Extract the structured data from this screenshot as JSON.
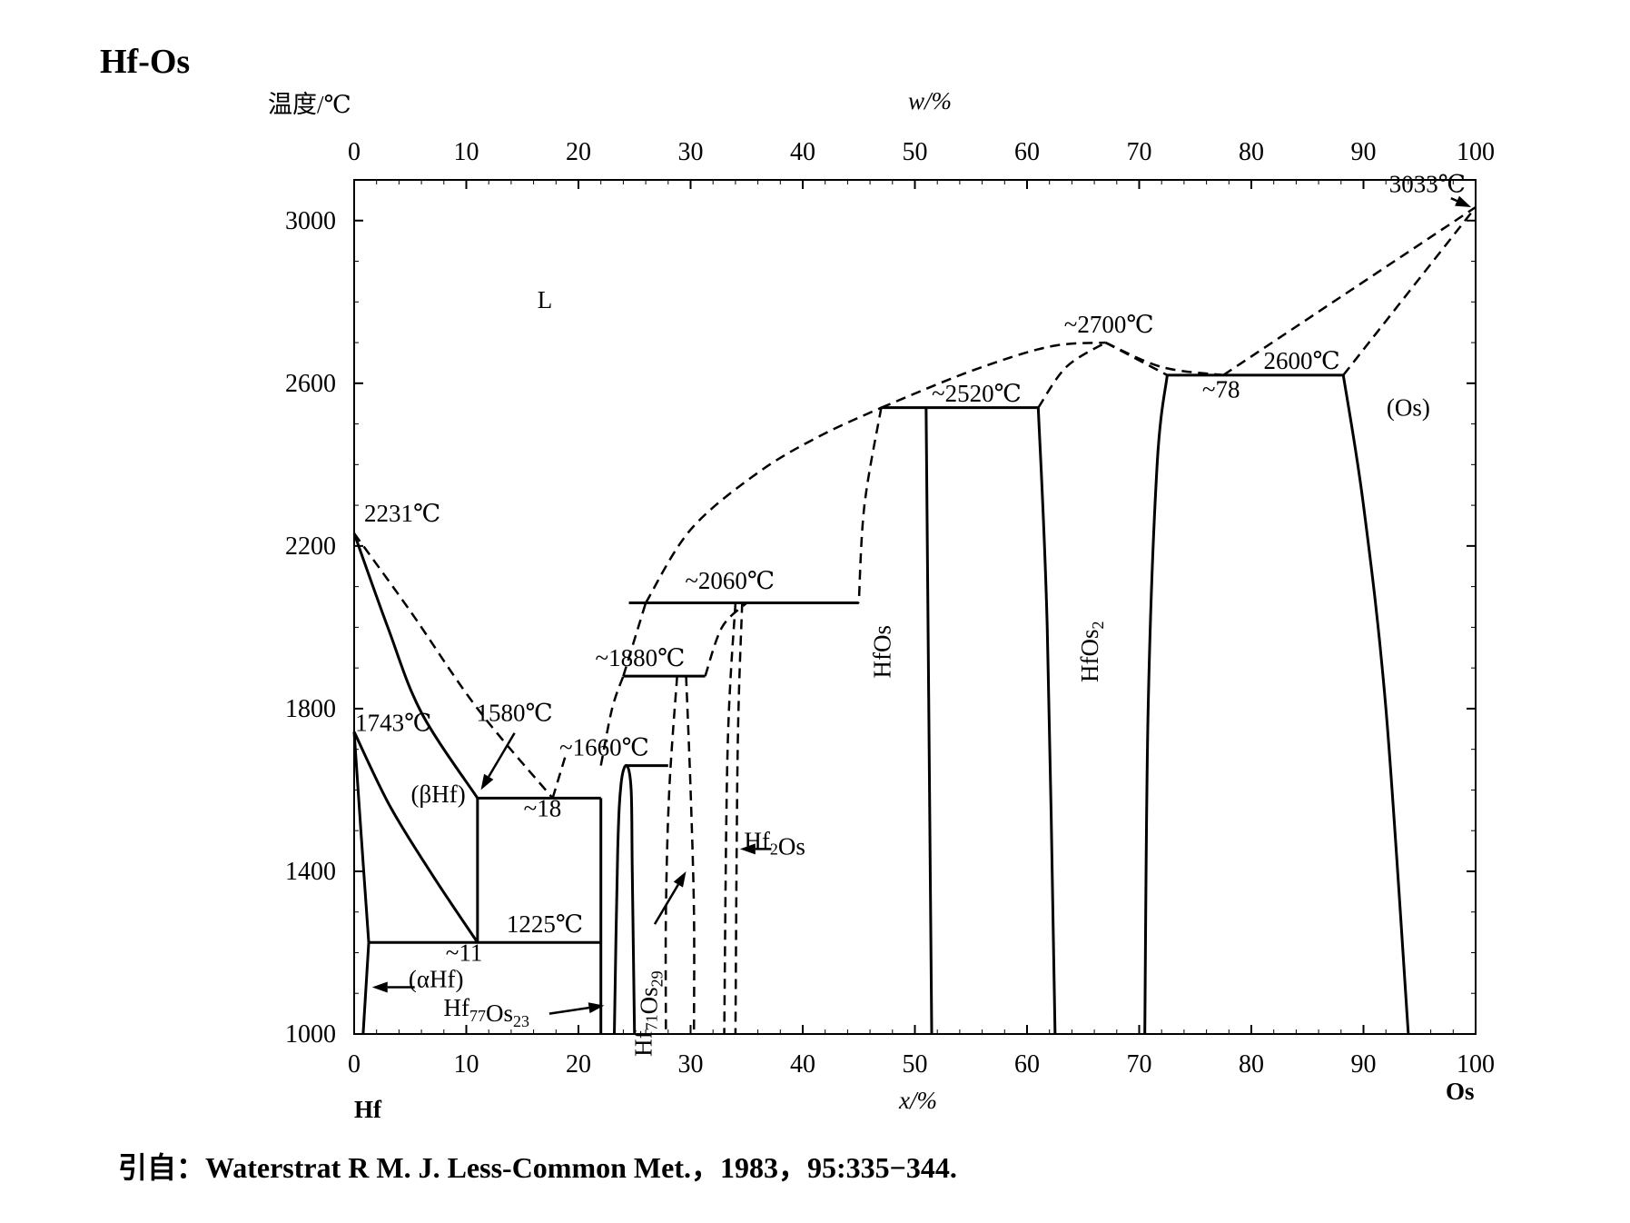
{
  "chart_data": {
    "type": "phase-diagram",
    "title": "Hf-Os",
    "ylabel": "温度/℃",
    "xlabel_bottom": "x/%",
    "xlabel_top": "w/%",
    "ylim": [
      1000,
      3100
    ],
    "xlim": [
      0,
      100
    ],
    "yticks": [
      1000,
      1400,
      1800,
      2200,
      2600,
      3000
    ],
    "xticks_bottom": [
      0,
      10,
      20,
      30,
      40,
      50,
      60,
      70,
      80,
      90,
      100
    ],
    "xticks_top": [
      0,
      10,
      20,
      30,
      40,
      50,
      60,
      70,
      80,
      90,
      100
    ],
    "end_labels": {
      "left": "Hf",
      "right": "Os"
    },
    "citation": "引自：Waterstrat R M. J. Less-Common Met.，1983，95:335−344.",
    "annotations": [
      {
        "id": "l",
        "text": "L",
        "x": 17,
        "y": 2785
      },
      {
        "id": "os-phase",
        "text": "(Os)",
        "x": 94,
        "y": 2520
      },
      {
        "id": "beta-hf",
        "text": "(βHf)",
        "x": 7.5,
        "y": 1570
      },
      {
        "id": "alpha-hf",
        "text": "(αHf)",
        "x": 7.3,
        "y": 1115
      },
      {
        "id": "t2231",
        "text": "2231℃",
        "x": 4.3,
        "y": 2260
      },
      {
        "id": "t1743",
        "text": "1743℃",
        "x": 3.5,
        "y": 1745
      },
      {
        "id": "t1580",
        "text": "1580℃",
        "x": 14.3,
        "y": 1770
      },
      {
        "id": "c18",
        "text": "~18",
        "x": 16.8,
        "y": 1535
      },
      {
        "id": "t1225",
        "text": "1225℃",
        "x": 17.0,
        "y": 1250
      },
      {
        "id": "c11",
        "text": "~11",
        "x": 9.8,
        "y": 1180
      },
      {
        "id": "t1660",
        "text": "~1660℃",
        "x": 22.3,
        "y": 1685
      },
      {
        "id": "t1880",
        "text": "~1880℃",
        "x": 25.5,
        "y": 1905
      },
      {
        "id": "t2060",
        "text": "~2060℃",
        "x": 33.5,
        "y": 2095
      },
      {
        "id": "t2520",
        "text": "~2520℃",
        "x": 55.5,
        "y": 2555
      },
      {
        "id": "t2700",
        "text": "~2700℃",
        "x": 67.3,
        "y": 2725
      },
      {
        "id": "t2600",
        "text": "2600℃",
        "x": 84.5,
        "y": 2635
      },
      {
        "id": "c78",
        "text": "~78",
        "x": 77.3,
        "y": 2565
      },
      {
        "id": "t3033",
        "text": "3033℃",
        "x": 95.7,
        "y": 3070
      }
    ],
    "phases": [
      {
        "id": "hfos",
        "text": "HfOs",
        "x": 47.8,
        "y": 1940
      },
      {
        "id": "hfos2",
        "text": "HfOs",
        "sub": "2",
        "x": 66.3,
        "y": 1940
      },
      {
        "id": "hf2os",
        "text": "Hf",
        "sub": "2",
        "tail": "Os",
        "x": 37.5,
        "y": 1455
      },
      {
        "id": "hf77os23",
        "text": "Hf",
        "sub": "77",
        "tail": "Os",
        "sub2": "23",
        "x": 11.8,
        "y": 1045
      },
      {
        "id": "hf71os29",
        "text": "Hf",
        "sub": "71",
        "tail": "Os",
        "sub2": "29",
        "x": 26.5,
        "y": 1050
      }
    ],
    "solid_lines": [
      [
        [
          0,
          2231
        ],
        [
          3.0,
          2000
        ],
        [
          6.0,
          1790
        ],
        [
          11.0,
          1580
        ]
      ],
      [
        [
          0,
          1743
        ],
        [
          3.2,
          1560
        ],
        [
          7.0,
          1390
        ],
        [
          11.0,
          1225
        ]
      ],
      [
        [
          0,
          1743
        ],
        [
          0.6,
          1500
        ],
        [
          1.3,
          1225
        ]
      ],
      [
        [
          1.3,
          1225
        ],
        [
          0.8,
          1000
        ]
      ],
      [
        [
          11.0,
          1580
        ],
        [
          11.0,
          1225
        ]
      ],
      [
        [
          11.0,
          1580
        ],
        [
          22.0,
          1580
        ]
      ],
      [
        [
          1.3,
          1225
        ],
        [
          22.0,
          1225
        ]
      ],
      [
        [
          22.0,
          1580
        ],
        [
          22.0,
          1000
        ]
      ],
      [
        [
          23.2,
          1000
        ],
        [
          23.5,
          1450
        ],
        [
          23.8,
          1615
        ],
        [
          24.3,
          1660
        ],
        [
          24.7,
          1600
        ],
        [
          24.8,
          1400
        ],
        [
          25.0,
          1000
        ]
      ],
      [
        [
          24.3,
          1660
        ],
        [
          28.0,
          1660
        ]
      ],
      [
        [
          24.0,
          1880
        ],
        [
          31.3,
          1880
        ]
      ],
      [
        [
          24.5,
          2060
        ],
        [
          45.0,
          2060
        ]
      ],
      [
        [
          47.0,
          2540
        ],
        [
          61.0,
          2540
        ]
      ],
      [
        [
          51.0,
          2540
        ],
        [
          51.5,
          1000
        ]
      ],
      [
        [
          61.0,
          2540
        ],
        [
          61.8,
          2000
        ],
        [
          62.5,
          1000
        ]
      ],
      [
        [
          72.5,
          2620
        ],
        [
          88.2,
          2620
        ]
      ],
      [
        [
          72.5,
          2620
        ],
        [
          71.6,
          2400
        ],
        [
          70.8,
          1800
        ],
        [
          70.5,
          1000
        ]
      ],
      [
        [
          88.2,
          2620
        ],
        [
          90.0,
          2300
        ],
        [
          92.0,
          1800
        ],
        [
          94.0,
          1000
        ]
      ]
    ],
    "dashed_lines": [
      [
        [
          0,
          2231
        ],
        [
          5.0,
          2040
        ],
        [
          11.0,
          1800
        ],
        [
          17.7,
          1580
        ]
      ],
      [
        [
          17.7,
          1580
        ],
        [
          18.8,
          1680
        ]
      ],
      [
        [
          22.0,
          1660
        ],
        [
          23.0,
          1800
        ],
        [
          24.0,
          1880
        ]
      ],
      [
        [
          24.0,
          1880
        ],
        [
          26.0,
          2060
        ]
      ],
      [
        [
          26.0,
          2060
        ],
        [
          30.0,
          2240
        ],
        [
          36.0,
          2380
        ],
        [
          41.5,
          2470
        ],
        [
          47.0,
          2540
        ]
      ],
      [
        [
          47.0,
          2540
        ],
        [
          55.0,
          2630
        ],
        [
          62.0,
          2690
        ],
        [
          67.0,
          2700
        ]
      ],
      [
        [
          67.0,
          2700
        ],
        [
          72.5,
          2620
        ]
      ],
      [
        [
          67.0,
          2700
        ],
        [
          72.0,
          2640
        ],
        [
          77.5,
          2620
        ]
      ],
      [
        [
          61.0,
          2540
        ],
        [
          63.5,
          2640
        ],
        [
          67.0,
          2700
        ]
      ],
      [
        [
          47.0,
          2540
        ],
        [
          45.5,
          2300
        ],
        [
          45.0,
          2060
        ]
      ],
      [
        [
          77.5,
          2620
        ],
        [
          100,
          3033
        ]
      ],
      [
        [
          88.2,
          2620
        ],
        [
          100,
          3033
        ]
      ],
      [
        [
          31.3,
          1880
        ],
        [
          32.8,
          2000
        ],
        [
          35.0,
          2060
        ]
      ],
      [
        [
          28.8,
          1880
        ],
        [
          28.1,
          1600
        ],
        [
          27.8,
          1300
        ],
        [
          27.8,
          1000
        ]
      ],
      [
        [
          29.6,
          1880
        ],
        [
          30.0,
          1600
        ],
        [
          30.3,
          1300
        ],
        [
          30.3,
          1000
        ]
      ],
      [
        [
          34.0,
          2060
        ],
        [
          33.3,
          1700
        ],
        [
          33.0,
          1000
        ]
      ],
      [
        [
          34.6,
          2060
        ],
        [
          34.2,
          1700
        ],
        [
          34.0,
          1000
        ]
      ]
    ],
    "arrows": [
      {
        "from": [
          14.3,
          1740
        ],
        "to": [
          11.3,
          1600
        ]
      },
      {
        "from": [
          5.4,
          1115
        ],
        "to": [
          1.6,
          1115
        ]
      },
      {
        "from": [
          37.2,
          1455
        ],
        "to": [
          34.4,
          1455
        ]
      },
      {
        "from": [
          17.4,
          1050
        ],
        "to": [
          22.3,
          1070
        ]
      },
      {
        "from": [
          26.8,
          1270
        ],
        "to": [
          29.6,
          1400
        ]
      },
      {
        "from": [
          97.8,
          3055
        ],
        "to": [
          99.6,
          3033
        ]
      }
    ]
  }
}
